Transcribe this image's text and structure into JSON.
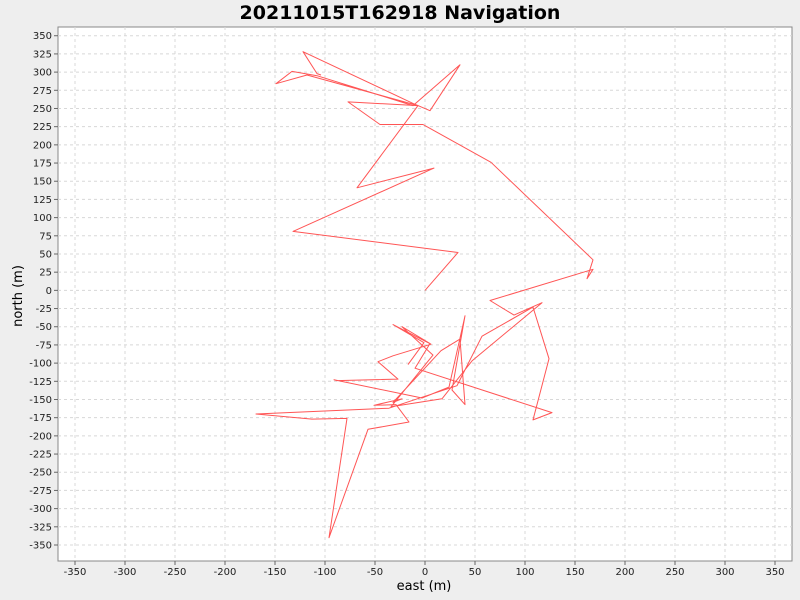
{
  "chart_data": {
    "type": "line",
    "title": "20211015T162918 Navigation",
    "xlabel": "east (m)",
    "ylabel": "north (m)",
    "xlim": [
      -367,
      367
    ],
    "ylim": [
      -372,
      362
    ],
    "xticks": [
      -350,
      -300,
      -250,
      -200,
      -150,
      -100,
      -50,
      0,
      50,
      100,
      150,
      200,
      250,
      300,
      350
    ],
    "yticks": [
      350,
      325,
      300,
      275,
      250,
      225,
      200,
      175,
      150,
      125,
      100,
      75,
      50,
      25,
      0,
      -25,
      -50,
      -75,
      -100,
      -125,
      -150,
      -175,
      -200,
      -225,
      -250,
      -275,
      -300,
      -325,
      -350
    ],
    "grid": true,
    "series": [
      {
        "color": "#ff5555",
        "points": [
          [
            0,
            0
          ],
          [
            33,
            52
          ],
          [
            -132,
            81
          ],
          [
            9,
            168
          ],
          [
            -68,
            141
          ],
          [
            -7,
            254
          ],
          [
            -77,
            259
          ],
          [
            -45,
            228
          ],
          [
            -2,
            228
          ],
          [
            66,
            176
          ],
          [
            168,
            42
          ],
          [
            162,
            16
          ],
          [
            168,
            29
          ],
          [
            65,
            -14
          ],
          [
            89,
            -34
          ],
          [
            117,
            -17
          ],
          [
            47,
            -97
          ],
          [
            17,
            -149
          ],
          [
            -34,
            -160
          ],
          [
            8,
            -89
          ],
          [
            -23,
            -50
          ],
          [
            5,
            -73
          ],
          [
            -10,
            -107
          ],
          [
            127,
            -168
          ],
          [
            108,
            -178
          ],
          [
            124,
            -94
          ],
          [
            108,
            -23
          ],
          [
            57,
            -63
          ],
          [
            32,
            -131
          ],
          [
            -36,
            -162
          ],
          [
            -169,
            -170
          ],
          [
            -113,
            -177
          ],
          [
            -78,
            -176
          ],
          [
            -96,
            -340
          ],
          [
            -57,
            -191
          ],
          [
            -16,
            -181
          ],
          [
            -29,
            -157
          ],
          [
            -51,
            -158
          ],
          [
            -23,
            -149
          ],
          [
            -32,
            -154
          ],
          [
            16,
            -83
          ],
          [
            35,
            -67
          ],
          [
            40,
            -157
          ],
          [
            27,
            -137
          ],
          [
            40,
            -35
          ],
          [
            24,
            -133
          ],
          [
            -3,
            -148
          ],
          [
            -91,
            -123
          ],
          [
            -88,
            -124
          ],
          [
            -27,
            -122
          ],
          [
            -47,
            -98
          ],
          [
            -32,
            -90
          ],
          [
            6,
            -74
          ],
          [
            -32,
            -47
          ],
          [
            -1,
            -72
          ],
          [
            -8,
            -85
          ],
          [
            -17,
            -102
          ]
        ],
        "points_upper": [
          [
            -7,
            254
          ],
          [
            -118,
            296
          ],
          [
            -118,
            296
          ],
          [
            -149,
            284
          ],
          [
            -133,
            301
          ],
          [
            -108,
            295
          ],
          [
            -12,
            254
          ],
          [
            35,
            310
          ],
          [
            5,
            247
          ],
          [
            -12,
            257
          ],
          [
            -122,
            328
          ],
          [
            -108,
            298
          ],
          [
            -104,
            296
          ]
        ]
      }
    ]
  }
}
